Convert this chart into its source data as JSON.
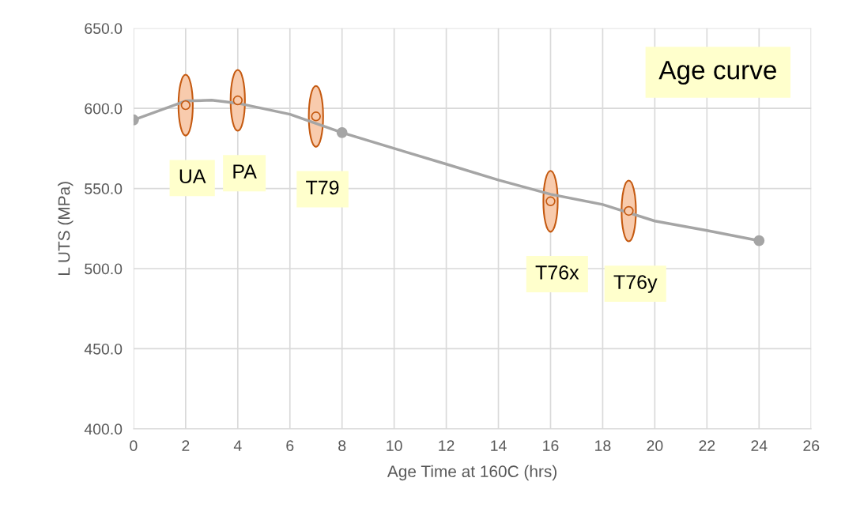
{
  "chart_data": {
    "type": "line",
    "title": "Age curve",
    "xlabel": "Age Time at 160C (hrs)",
    "ylabel": "L UTS (MPa)",
    "xlim": [
      0,
      26
    ],
    "xticks": [
      0,
      2,
      4,
      6,
      8,
      10,
      12,
      14,
      16,
      18,
      20,
      22,
      24,
      26
    ],
    "ylim": [
      400,
      650
    ],
    "yticks": [
      {
        "value": 400,
        "label": "400.0"
      },
      {
        "value": 450,
        "label": "450.0"
      },
      {
        "value": 500,
        "label": "500.0"
      },
      {
        "value": 550,
        "label": "550.0"
      },
      {
        "value": 600,
        "label": "600.0"
      },
      {
        "value": 650,
        "label": "650.0"
      }
    ],
    "grid": true,
    "legend": false,
    "series": [
      {
        "color": "#a5a5a5",
        "marker": "none",
        "x": [
          0,
          2,
          3,
          4,
          6,
          8,
          10,
          12,
          14,
          16,
          18,
          20,
          22,
          24
        ],
        "values": [
          592.8,
          604.6,
          605.1,
          603.2,
          596.3,
          584.9,
          575,
          565.2,
          555.3,
          546.4,
          540,
          529.7,
          523.8,
          517.4
        ]
      },
      {
        "type": "scatter",
        "color": "#a5a5a5",
        "marker": "circle",
        "x": [
          0,
          8,
          24
        ],
        "values": [
          592.8,
          584.9,
          517.4
        ]
      },
      {
        "type": "scatter",
        "color": "#f8cbad",
        "marker": "circle",
        "x": [
          2,
          4,
          7,
          16,
          19
        ],
        "values": [
          602,
          605,
          595,
          542,
          536
        ]
      }
    ],
    "annotations": [
      "UA",
      "PA",
      "T79",
      "T76x",
      "T76y"
    ]
  }
}
